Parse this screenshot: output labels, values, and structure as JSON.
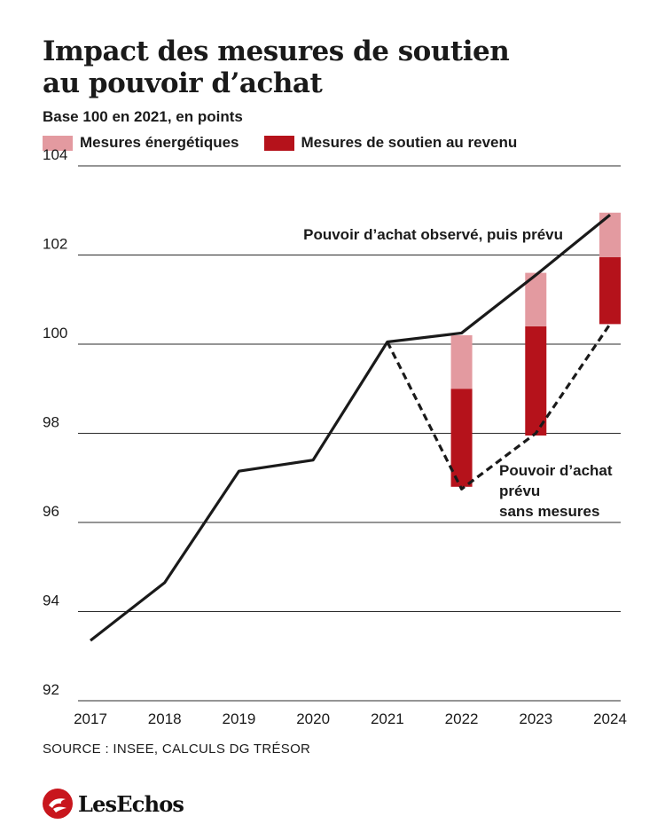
{
  "header": {
    "title": "Impact des mesures de soutien\nau pouvoir d’achat",
    "subtitle": "Base 100 en 2021, en points"
  },
  "legend": [
    {
      "label": "Mesures énergétiques",
      "color": "#e39aa0"
    },
    {
      "label": "Mesures de soutien au revenu",
      "color": "#b5121b"
    }
  ],
  "chart_data": {
    "type": "line",
    "x": [
      "2017",
      "2018",
      "2019",
      "2020",
      "2021",
      "2022",
      "2023",
      "2024"
    ],
    "ylim": [
      92,
      104
    ],
    "yticks": [
      "92",
      "94",
      "96",
      "98",
      "100",
      "102",
      "104"
    ],
    "grid": true,
    "series": [
      {
        "name": "Pouvoir d’achat observé, puis prévu",
        "style": "solid",
        "color": "#1a1a1a",
        "values": [
          93.35,
          94.65,
          97.15,
          97.4,
          100.05,
          100.25,
          101.55,
          102.9
        ]
      },
      {
        "name": "Pouvoir d’achat prévu sans mesures",
        "style": "dashed",
        "color": "#1a1a1a",
        "x": [
          "2021",
          "2022",
          "2023",
          "2024"
        ],
        "values": [
          100.05,
          96.75,
          98.0,
          100.45
        ]
      }
    ],
    "stacked_bars": [
      {
        "x": "2022",
        "base": 96.8,
        "revenu": 2.2,
        "energie": 1.2
      },
      {
        "x": "2023",
        "base": 97.95,
        "revenu": 2.45,
        "energie": 1.2
      },
      {
        "x": "2024",
        "base": 100.45,
        "revenu": 1.5,
        "energie": 1.0
      }
    ],
    "annotations": [
      {
        "text": "Pouvoir d’achat observé, puis prévu"
      },
      {
        "lines": [
          "Pouvoir d’achat",
          "prévu",
          "sans mesures"
        ]
      }
    ]
  },
  "footer": {
    "source": "SOURCE : INSEE, CALCULS DG TRÉSOR",
    "brand": "LesEchos"
  }
}
